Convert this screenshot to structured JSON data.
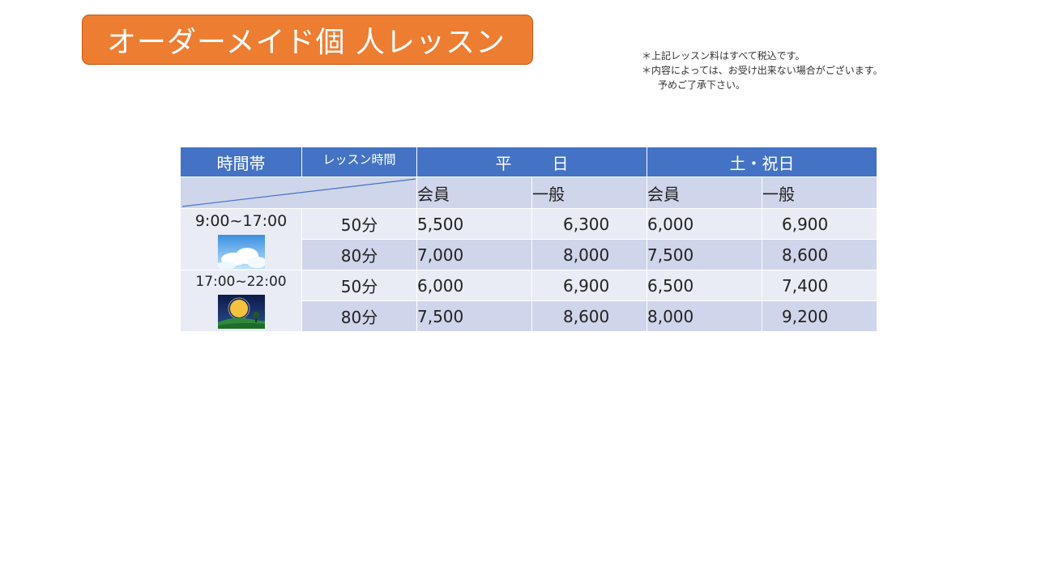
{
  "title": "オーダーメイド個 人レッスン",
  "notes": [
    "＊上記レッスン料はすべて税込です。",
    "＊内容によっては、お受け出来ない場合がございます。",
    "予めご了承下さい。"
  ],
  "table": {
    "headers": {
      "time_band": "時間帯",
      "lesson_time": "レッスン時間",
      "weekday": "平日",
      "weekend": "土・祝日"
    },
    "subheaders": {
      "weekday_member": "会員",
      "weekday_general": "一般",
      "weekend_member": "会員",
      "weekend_general": "一般"
    },
    "groups": [
      {
        "time": "9:00~17:00",
        "image": "daytime-sky-icon",
        "rows": [
          {
            "duration": "50分",
            "prices": [
              "5,500",
              "6,300",
              "6,000",
              "6,900"
            ]
          },
          {
            "duration": "80分",
            "prices": [
              "7,000",
              "8,000",
              "7,500",
              "8,600"
            ]
          }
        ]
      },
      {
        "time": "17:00~22:00",
        "image": "night-moon-icon",
        "rows": [
          {
            "duration": "50分",
            "prices": [
              "6,000",
              "6,900",
              "6,500",
              "7,400"
            ]
          },
          {
            "duration": "80分",
            "prices": [
              "7,500",
              "8,600",
              "8,000",
              "9,200"
            ]
          }
        ]
      }
    ]
  },
  "colors": {
    "title_bg": "#ed7d31",
    "header_bg": "#4472c4",
    "row_dark": "#cfd5ea",
    "row_light": "#e9ebf5"
  }
}
